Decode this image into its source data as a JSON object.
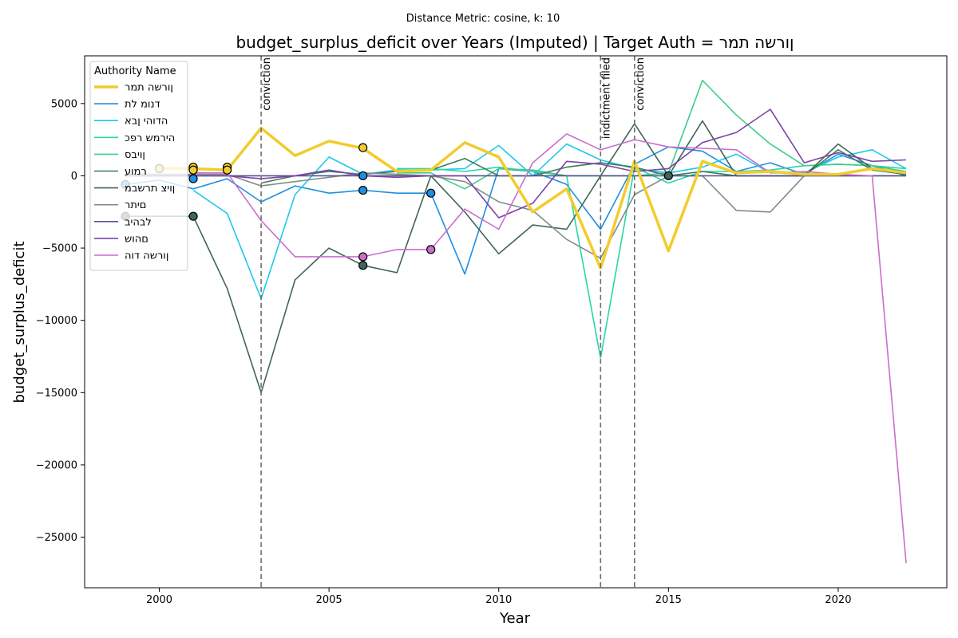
{
  "chart_data": {
    "type": "line",
    "suptitle": "Distance Metric: cosine, k: 10",
    "title": "budget_surplus_deficit over Years (Imputed) | Target Auth = ןורשה תמר",
    "xlabel": "Year",
    "ylabel": "budget_surplus_deficit",
    "xlim": [
      1997.8,
      2023.2
    ],
    "ylim": [
      -28500,
      8300
    ],
    "xticks": [
      2000,
      2005,
      2010,
      2015,
      2020
    ],
    "yticks": [
      5000,
      0,
      -5000,
      -10000,
      -15000,
      -20000,
      -25000
    ],
    "grid": false,
    "legend": {
      "title": "Authority Name",
      "placement": "top-left"
    },
    "x": [
      1999,
      2000,
      2001,
      2002,
      2003,
      2004,
      2005,
      2006,
      2007,
      2008,
      2009,
      2010,
      2011,
      2012,
      2013,
      2014,
      2015,
      2016,
      2017,
      2018,
      2019,
      2020,
      2021,
      2022
    ],
    "series": [
      {
        "name": "ןורשה תמר",
        "color": "#f2cc2c",
        "target": true,
        "values": [
          null,
          500,
          500,
          400,
          3300,
          1400,
          2400,
          1900,
          300,
          400,
          2300,
          1300,
          -2500,
          -900,
          -6400,
          1000,
          -5200,
          1000,
          200,
          300,
          100,
          100,
          500,
          200
        ],
        "markers": [
          [
            2000,
            500
          ],
          [
            2001,
            600
          ],
          [
            2001,
            400
          ],
          [
            2002,
            600
          ],
          [
            2002,
            400
          ],
          [
            2006,
            1950
          ]
        ]
      },
      {
        "name": "דנומ לת",
        "color": "#1f8fe0",
        "values": [
          -600,
          -300,
          -900,
          -200,
          -1800,
          -700,
          -1200,
          -1000,
          -1200,
          -1200,
          -6800,
          500,
          300,
          -600,
          -3700,
          800,
          2000,
          1700,
          300,
          900,
          100,
          1500,
          700,
          0
        ],
        "markers": [
          [
            1999,
            -600
          ],
          [
            2001,
            -200
          ],
          [
            2006,
            -1000
          ],
          [
            2006,
            0
          ],
          [
            2008,
            -1200
          ]
        ]
      },
      {
        "name": "הדוהי ןבא",
        "color": "#1ec8ee",
        "values": [
          null,
          null,
          -1000,
          -2600,
          -8500,
          -1300,
          1300,
          100,
          400,
          400,
          500,
          2100,
          0,
          2200,
          1100,
          500,
          200,
          600,
          1500,
          200,
          200,
          1300,
          1800,
          500
        ],
        "markers": []
      },
      {
        "name": "הירמש רפכ",
        "color": "#28d6a8",
        "values": [
          null,
          null,
          null,
          null,
          null,
          null,
          null,
          null,
          500,
          500,
          300,
          600,
          300,
          0,
          -12600,
          600,
          -500,
          300,
          300,
          400,
          700,
          800,
          700,
          500
        ],
        "markers": []
      },
      {
        "name": "ןויבס",
        "color": "#3fcd8a",
        "values": [
          null,
          null,
          null,
          null,
          null,
          null,
          null,
          null,
          200,
          200,
          -900,
          500,
          400,
          0,
          0,
          0,
          200,
          6600,
          4200,
          2200,
          700,
          800,
          700,
          300
        ],
        "markers": []
      },
      {
        "name": "רמוע",
        "color": "#3a7d54",
        "values": [
          null,
          null,
          null,
          null,
          -500,
          0,
          300,
          100,
          300,
          400,
          1200,
          0,
          0,
          600,
          900,
          600,
          0,
          300,
          0,
          0,
          0,
          1800,
          400,
          100
        ],
        "markers": []
      },
      {
        "name": "ןויצ תרשבמ",
        "color": "#3f6657",
        "values": [
          -2800,
          -2800,
          -2800,
          -7800,
          -15000,
          -7200,
          -5000,
          -6200,
          -6700,
          0,
          -2500,
          -5400,
          -3400,
          -3700,
          0,
          3600,
          0,
          3800,
          0,
          0,
          0,
          2200,
          500,
          100
        ],
        "markers": [
          [
            1999,
            -2800
          ],
          [
            2001,
            -2800
          ],
          [
            2006,
            -6200
          ],
          [
            2015,
            0
          ]
        ]
      },
      {
        "name": "םיתר",
        "color": "#7f8c8a",
        "values": [
          100,
          100,
          100,
          100,
          -700,
          -400,
          -100,
          200,
          100,
          0,
          -400,
          -1800,
          -2400,
          -4400,
          -5700,
          -1300,
          0,
          0,
          -2400,
          -2500,
          0,
          0,
          0,
          0
        ],
        "markers": []
      },
      {
        "name": "לבהיב",
        "color": "#53558e",
        "values": [
          0,
          0,
          0,
          0,
          0,
          0,
          0,
          0,
          0,
          0,
          0,
          0,
          0,
          0,
          0,
          0,
          0,
          0,
          0,
          0,
          0,
          0,
          0,
          0
        ],
        "markers": []
      },
      {
        "name": "םהוש",
        "color": "#7d43a8",
        "values": [
          0,
          0,
          0,
          0,
          -200,
          0,
          400,
          0,
          -100,
          0,
          0,
          -2900,
          -1900,
          1000,
          800,
          300,
          500,
          2300,
          3000,
          4600,
          900,
          1600,
          1000,
          1100
        ],
        "markers": []
      },
      {
        "name": "ןורשה דוה",
        "color": "#cc6dcc",
        "values": [
          null,
          null,
          200,
          200,
          -3100,
          -5600,
          -5600,
          -5600,
          -5100,
          -5100,
          -2300,
          -3700,
          900,
          2900,
          1800,
          2500,
          2000,
          1900,
          1800,
          200,
          300,
          100,
          0,
          -26800
        ],
        "markers": [
          [
            2006,
            -5600
          ],
          [
            2008,
            -5100
          ]
        ]
      }
    ],
    "annotations": [
      {
        "x": 2003,
        "label": "conviction"
      },
      {
        "x": 2013,
        "label": "indictment filed"
      },
      {
        "x": 2014,
        "label": "conviction"
      }
    ]
  }
}
